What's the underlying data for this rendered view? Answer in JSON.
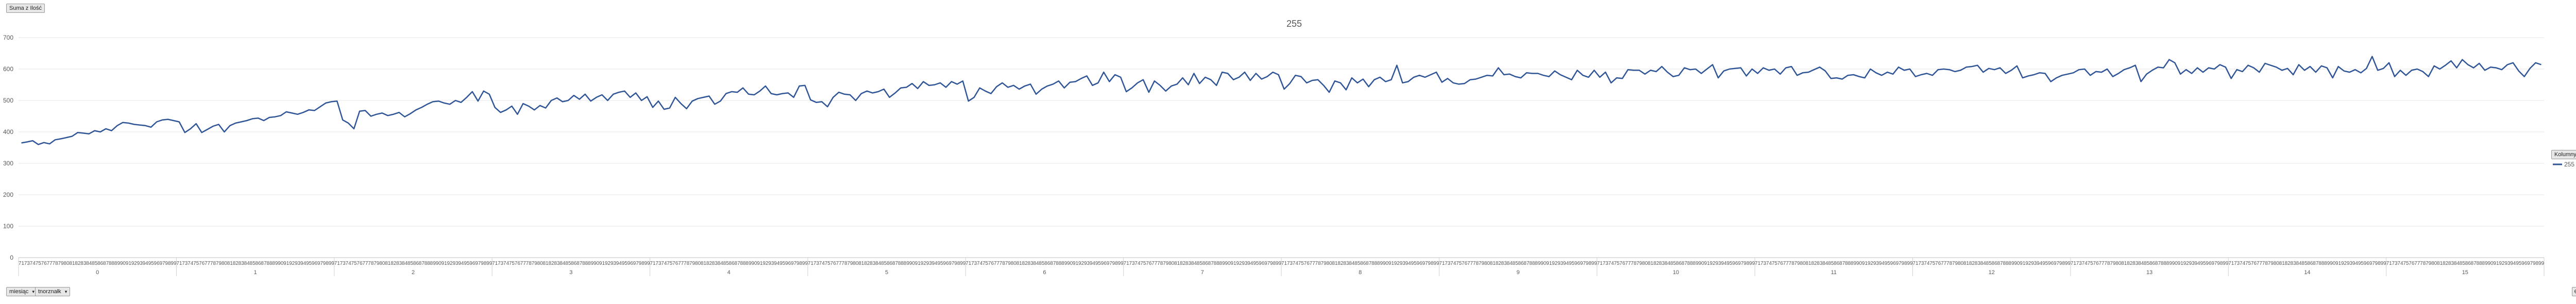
{
  "pivot_controls": {
    "value_field": "Suma z Ilość",
    "row_fields": [
      "miesiąc",
      "tnorznałk"
    ],
    "legend_filter": "Kolumny",
    "dropdown_arrow": "▾"
  },
  "chart_data": {
    "type": "line",
    "title": "255",
    "legend": [
      "255"
    ],
    "legend_position": "right",
    "ylim": [
      0,
      700
    ],
    "yticks": [
      0,
      100,
      200,
      300,
      400,
      500,
      600,
      700
    ],
    "grid": true,
    "series_color": "#2f5597",
    "groups": [
      {
        "label": "0",
        "ticks": [
          "71",
          "73",
          "74",
          "75",
          "76",
          "77",
          "78",
          "79",
          "80",
          "81",
          "82",
          "83",
          "84",
          "85",
          "86",
          "87",
          "88",
          "89",
          "90",
          "91",
          "92",
          "93",
          "94",
          "95",
          "96",
          "97",
          "98",
          "99"
        ]
      },
      {
        "label": "1",
        "ticks": [
          "71",
          "73",
          "74",
          "75",
          "76",
          "77",
          "78",
          "79",
          "80",
          "81",
          "82",
          "83",
          "84",
          "85",
          "86",
          "87",
          "88",
          "89",
          "90",
          "91",
          "92",
          "93",
          "94",
          "95",
          "96",
          "97",
          "98",
          "99"
        ]
      },
      {
        "label": "2",
        "ticks": [
          "71",
          "73",
          "74",
          "75",
          "76",
          "77",
          "78",
          "79",
          "80",
          "81",
          "82",
          "83",
          "84",
          "85",
          "86",
          "87",
          "88",
          "89",
          "90",
          "91",
          "92",
          "93",
          "94",
          "95",
          "96",
          "97",
          "98",
          "99"
        ]
      },
      {
        "label": "3",
        "ticks": [
          "71",
          "73",
          "74",
          "75",
          "76",
          "77",
          "78",
          "79",
          "80",
          "81",
          "82",
          "83",
          "84",
          "85",
          "86",
          "87",
          "88",
          "89",
          "90",
          "91",
          "92",
          "93",
          "94",
          "95",
          "96",
          "97",
          "98",
          "99"
        ]
      },
      {
        "label": "4",
        "ticks": [
          "71",
          "73",
          "74",
          "75",
          "76",
          "77",
          "78",
          "79",
          "80",
          "81",
          "82",
          "83",
          "84",
          "85",
          "86",
          "87",
          "88",
          "89",
          "90",
          "91",
          "92",
          "93",
          "94",
          "95",
          "96",
          "97",
          "98",
          "99"
        ]
      },
      {
        "label": "5",
        "ticks": [
          "71",
          "73",
          "74",
          "75",
          "76",
          "77",
          "78",
          "79",
          "80",
          "81",
          "82",
          "83",
          "84",
          "85",
          "86",
          "87",
          "88",
          "89",
          "90",
          "91",
          "92",
          "93",
          "94",
          "95",
          "96",
          "97",
          "98",
          "99"
        ]
      },
      {
        "label": "6",
        "ticks": [
          "71",
          "73",
          "74",
          "75",
          "76",
          "77",
          "78",
          "79",
          "80",
          "81",
          "82",
          "83",
          "84",
          "85",
          "86",
          "87",
          "88",
          "89",
          "90",
          "91",
          "92",
          "93",
          "94",
          "95",
          "96",
          "97",
          "98",
          "99"
        ]
      },
      {
        "label": "7",
        "ticks": [
          "71",
          "73",
          "74",
          "75",
          "76",
          "77",
          "78",
          "79",
          "80",
          "81",
          "82",
          "83",
          "84",
          "85",
          "86",
          "87",
          "88",
          "89",
          "90",
          "91",
          "92",
          "93",
          "94",
          "95",
          "96",
          "97",
          "98",
          "99"
        ]
      },
      {
        "label": "8",
        "ticks": [
          "71",
          "73",
          "74",
          "75",
          "76",
          "77",
          "78",
          "79",
          "80",
          "81",
          "82",
          "83",
          "84",
          "85",
          "86",
          "87",
          "88",
          "89",
          "90",
          "91",
          "92",
          "93",
          "94",
          "95",
          "96",
          "97",
          "98",
          "99"
        ]
      },
      {
        "label": "9",
        "ticks": [
          "71",
          "73",
          "74",
          "75",
          "76",
          "77",
          "78",
          "79",
          "80",
          "81",
          "82",
          "83",
          "84",
          "85",
          "86",
          "87",
          "88",
          "89",
          "90",
          "91",
          "92",
          "93",
          "94",
          "95",
          "96",
          "97",
          "98",
          "99"
        ]
      },
      {
        "label": "10",
        "ticks": [
          "71",
          "73",
          "74",
          "75",
          "76",
          "77",
          "78",
          "79",
          "80",
          "81",
          "82",
          "83",
          "84",
          "85",
          "86",
          "87",
          "88",
          "89",
          "90",
          "91",
          "92",
          "93",
          "94",
          "95",
          "96",
          "97",
          "98",
          "99"
        ]
      },
      {
        "label": "11",
        "ticks": [
          "71",
          "73",
          "74",
          "75",
          "76",
          "77",
          "78",
          "79",
          "80",
          "81",
          "82",
          "83",
          "84",
          "85",
          "86",
          "87",
          "88",
          "89",
          "90",
          "91",
          "92",
          "93",
          "94",
          "95",
          "96",
          "97",
          "98",
          "99"
        ]
      },
      {
        "label": "12",
        "ticks": [
          "71",
          "73",
          "74",
          "75",
          "76",
          "77",
          "78",
          "79",
          "80",
          "81",
          "82",
          "83",
          "84",
          "85",
          "86",
          "87",
          "88",
          "89",
          "90",
          "91",
          "92",
          "93",
          "94",
          "95",
          "96",
          "97",
          "98",
          "99"
        ]
      },
      {
        "label": "13",
        "ticks": [
          "71",
          "73",
          "74",
          "75",
          "76",
          "77",
          "78",
          "79",
          "80",
          "81",
          "82",
          "83",
          "84",
          "85",
          "86",
          "87",
          "88",
          "89",
          "90",
          "91",
          "92",
          "93",
          "94",
          "95",
          "96",
          "97",
          "98",
          "99"
        ]
      },
      {
        "label": "14",
        "ticks": [
          "71",
          "73",
          "74",
          "75",
          "76",
          "77",
          "78",
          "79",
          "80",
          "81",
          "82",
          "83",
          "84",
          "85",
          "86",
          "87",
          "88",
          "89",
          "90",
          "91",
          "92",
          "93",
          "94",
          "95",
          "96",
          "97",
          "98",
          "99"
        ]
      },
      {
        "label": "15",
        "ticks": [
          "71",
          "73",
          "74",
          "75",
          "76",
          "77",
          "78",
          "79",
          "80",
          "81",
          "82",
          "83",
          "84",
          "85",
          "86",
          "87",
          "88",
          "89",
          "90",
          "91",
          "92",
          "93",
          "94",
          "95",
          "96",
          "97",
          "98",
          "99"
        ]
      }
    ],
    "series": [
      {
        "values": [
          [
            365,
            368,
            372,
            360,
            366,
            362,
            375,
            378,
            382,
            386,
            398,
            396,
            394,
            404,
            400,
            410,
            404,
            420,
            430,
            428,
            424,
            422,
            420,
            415,
            432,
            438,
            440,
            436
          ],
          [
            432,
            398,
            410,
            426,
            398,
            408,
            418,
            424,
            400,
            420,
            428,
            432,
            436,
            442,
            444,
            436,
            446,
            448,
            452,
            464,
            460,
            456,
            462,
            470,
            468,
            480,
            492,
            496
          ],
          [
            498,
            438,
            428,
            410,
            466,
            468,
            450,
            456,
            460,
            452,
            456,
            462,
            448,
            458,
            470,
            478,
            488,
            496,
            498,
            492,
            488,
            500,
            494,
            510,
            528,
            498,
            530,
            520
          ],
          [
            478,
            462,
            470,
            482,
            456,
            490,
            482,
            470,
            484,
            476,
            500,
            508,
            496,
            500,
            516,
            504,
            520,
            498,
            510,
            518,
            500,
            520,
            526,
            530,
            510,
            524,
            500,
            512
          ],
          [
            478,
            498,
            472,
            476,
            510,
            490,
            474,
            498,
            506,
            510,
            514,
            488,
            498,
            522,
            528,
            526,
            540,
            520,
            518,
            530,
            546,
            522,
            518,
            522,
            524,
            510,
            546,
            548
          ],
          [
            502,
            494,
            496,
            480,
            510,
            526,
            520,
            518,
            500,
            522,
            530,
            524,
            528,
            536,
            510,
            524,
            540,
            542,
            554,
            538,
            560,
            548,
            550,
            556,
            542,
            560,
            552,
            562
          ],
          [
            498,
            510,
            540,
            530,
            522,
            544,
            556,
            542,
            548,
            536,
            546,
            552,
            520,
            536,
            546,
            552,
            562,
            540,
            558,
            560,
            570,
            578,
            548,
            556,
            590,
            560,
            582,
            574
          ],
          [
            528,
            540,
            556,
            566,
            526,
            562,
            548,
            530,
            546,
            552,
            572,
            550,
            586,
            554,
            574,
            566,
            548,
            590,
            586,
            566,
            574,
            590,
            564,
            586,
            568,
            576,
            590,
            582
          ],
          [
            536,
            554,
            580,
            576,
            556,
            564,
            566,
            548,
            526,
            562,
            556,
            534,
            572,
            556,
            568,
            544,
            566,
            574,
            560,
            566,
            612,
            556,
            560,
            574,
            580,
            574,
            582,
            590
          ],
          [
            558,
            570,
            556,
            552,
            554,
            566,
            568,
            574,
            580,
            578,
            604,
            582,
            584,
            576,
            572,
            588,
            586,
            586,
            580,
            576,
            594,
            582,
            574,
            566,
            596,
            580,
            574,
            596
          ],
          [
            574,
            590,
            556,
            572,
            570,
            598,
            596,
            596,
            584,
            596,
            592,
            608,
            590,
            576,
            580,
            604,
            598,
            600,
            586,
            600,
            614,
            572,
            594,
            600,
            602,
            604,
            578,
            600
          ],
          [
            586,
            604,
            596,
            600,
            584,
            604,
            608,
            580,
            588,
            590,
            598,
            606,
            594,
            570,
            572,
            568,
            580,
            582,
            576,
            572,
            600,
            588,
            580,
            590,
            584,
            606,
            596,
            600
          ],
          [
            576,
            582,
            586,
            580,
            598,
            600,
            598,
            592,
            596,
            606,
            608,
            612,
            590,
            602,
            598,
            604,
            586,
            596,
            610,
            572,
            578,
            582,
            588,
            586,
            560,
            572,
            580,
            584
          ],
          [
            588,
            598,
            600,
            580,
            592,
            590,
            600,
            576,
            586,
            598,
            604,
            612,
            560,
            584,
            596,
            606,
            604,
            630,
            620,
            584,
            598,
            586,
            604,
            590,
            604,
            600,
            614,
            606
          ],
          [
            570,
            598,
            592,
            612,
            604,
            590,
            618,
            612,
            606,
            596,
            602,
            582,
            614,
            596,
            608,
            590,
            610,
            604,
            572,
            608,
            594,
            590,
            598,
            588,
            602,
            640,
            596,
            602
          ],
          [
            620,
            576,
            596,
            580,
            596,
            600,
            592,
            576,
            610,
            600,
            612,
            626,
            604,
            630,
            614,
            604,
            618,
            596,
            606,
            604,
            598,
            614,
            620,
            594,
            576,
            602,
            620,
            614
          ]
        ]
      }
    ]
  }
}
